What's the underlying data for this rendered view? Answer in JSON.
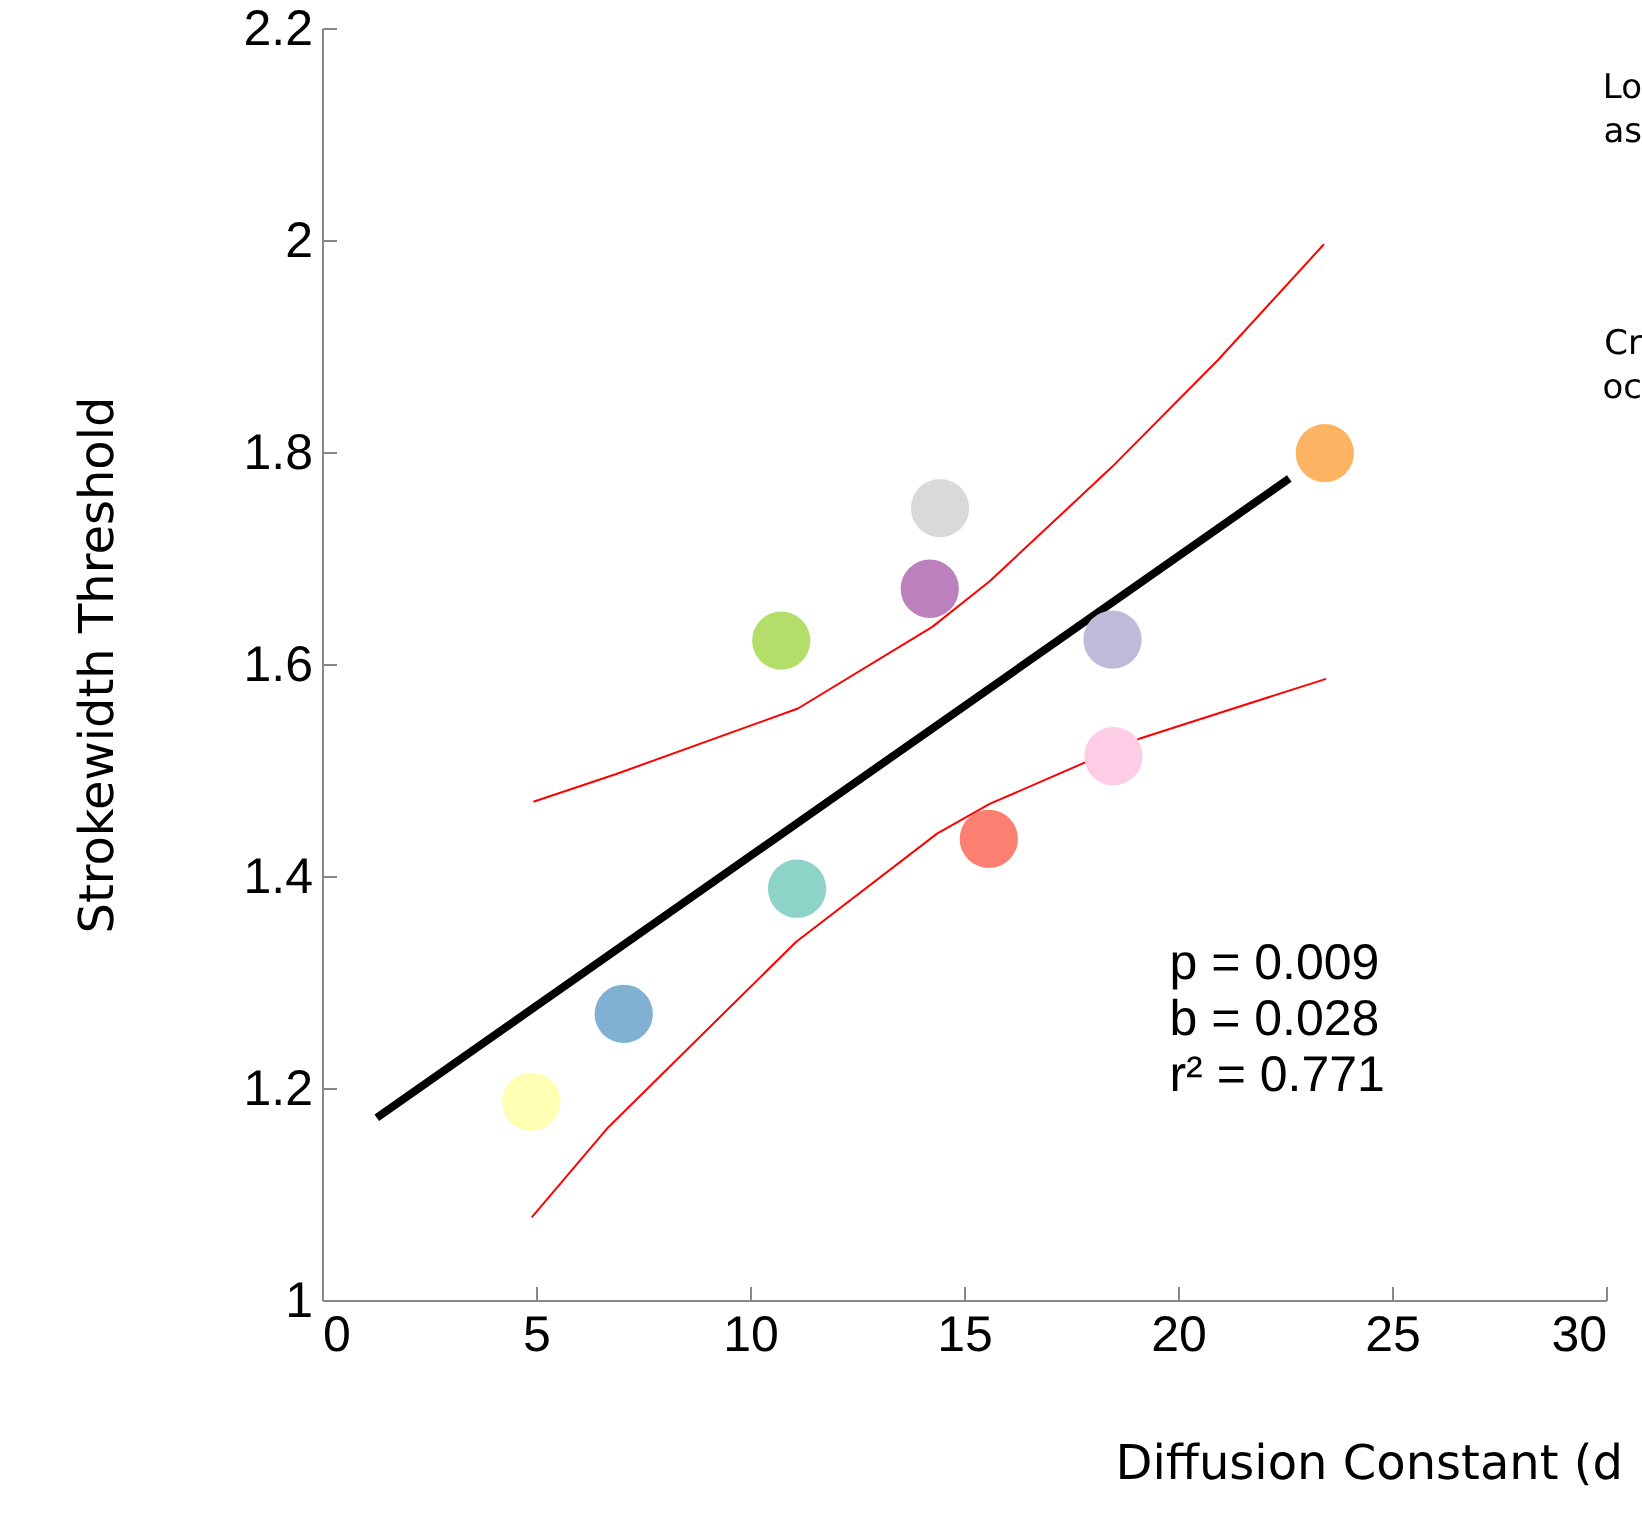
{
  "chart_data": {
    "type": "scatter",
    "xlabel": "Diffusion Constant (d",
    "ylabel": "Strokewidth Threshold",
    "xlim": [
      0,
      30
    ],
    "xticks": [
      0,
      5,
      10,
      15,
      20,
      25,
      30
    ],
    "ylim": [
      1,
      2.2
    ],
    "yticks": [
      1,
      1.2,
      1.4,
      1.6,
      1.8,
      2,
      2.2
    ],
    "grid": false,
    "line_style": "solid",
    "annotations": [
      "p = 0.009",
      "b = 0.028",
      "r² = 0.771",
      "Lo",
      "as",
      "Cr",
      "oc"
    ],
    "series": [
      {
        "type": "line",
        "x": [
          1.28,
          22.6
        ],
        "values": [
          1.172,
          1.775
        ],
        "color": "#000000"
      },
      {
        "type": "line",
        "x": [
          4.94,
          6.86,
          11.12,
          14.26,
          15.6,
          18.46,
          20.94,
          23.41
        ],
        "values": [
          1.47,
          1.496,
          1.558,
          1.635,
          1.678,
          1.786,
          1.887,
          1.996
        ],
        "color": "#ff0000"
      },
      {
        "type": "line",
        "x": [
          4.9,
          6.69,
          11.08,
          14.37,
          15.6,
          19.13,
          23.46
        ],
        "values": [
          1.078,
          1.163,
          1.338,
          1.44,
          1.468,
          1.53,
          1.586
        ],
        "color": "#ff0000"
      },
      {
        "marker": "circle",
        "x": [
          4.89,
          7.05,
          10.73,
          11.1,
          14.2,
          14.44,
          15.58,
          18.47,
          18.49,
          23.43
        ],
        "values": [
          1.187,
          1.27,
          1.622,
          1.388,
          1.671,
          1.747,
          1.435,
          1.623,
          1.513,
          1.799
        ],
        "colors": [
          "#ffffb3",
          "#80b1d3",
          "#b3de69",
          "#8dd3c7",
          "#bc80bd",
          "#d9d9d9",
          "#fb8072",
          "#bebada",
          "#fccde5",
          "#fdb462"
        ]
      }
    ]
  }
}
